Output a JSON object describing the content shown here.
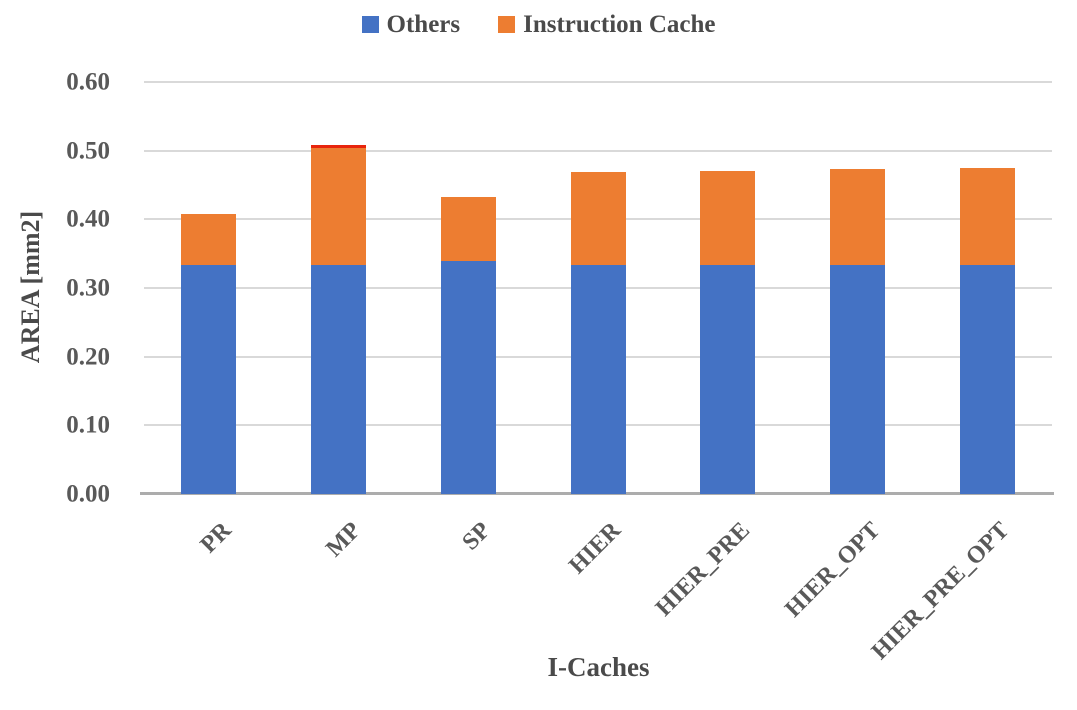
{
  "chart_data": {
    "type": "bar",
    "stacked": true,
    "title": "",
    "xlabel": "I-Caches",
    "ylabel": "AREA [mm2]",
    "categories": [
      "PR",
      "MP",
      "SP",
      "HIER",
      "HIER_PRE",
      "HIER_OPT",
      "HIER_PRE_OPT"
    ],
    "series": [
      {
        "name": "Others",
        "color": "#4472C4",
        "values": [
          0.333,
          0.333,
          0.34,
          0.333,
          0.333,
          0.333,
          0.333
        ]
      },
      {
        "name": "Instruction Cache",
        "color": "#ED7D31",
        "values": [
          0.075,
          0.175,
          0.093,
          0.136,
          0.137,
          0.14,
          0.142
        ]
      }
    ],
    "totals": [
      0.408,
      0.508,
      0.433,
      0.469,
      0.47,
      0.473,
      0.475
    ],
    "ylim": [
      0,
      0.6
    ],
    "ytick_step": 0.1,
    "ytick_labels": [
      "0.00",
      "0.10",
      "0.20",
      "0.30",
      "0.40",
      "0.50",
      "0.60"
    ],
    "grid": "horizontal",
    "legend_position": "top",
    "x_labels_rotation_deg": 45,
    "annotations": [
      {
        "category": "MP",
        "series": "Instruction Cache",
        "type": "red-top-edge",
        "color": "#E8250C"
      }
    ],
    "colors": {
      "gridline": "#D9D9D9",
      "axis_line": "#ACACAC",
      "tick_text": "#595959",
      "title_text": "#4A4A4A",
      "background": "#FFFFFF"
    }
  }
}
